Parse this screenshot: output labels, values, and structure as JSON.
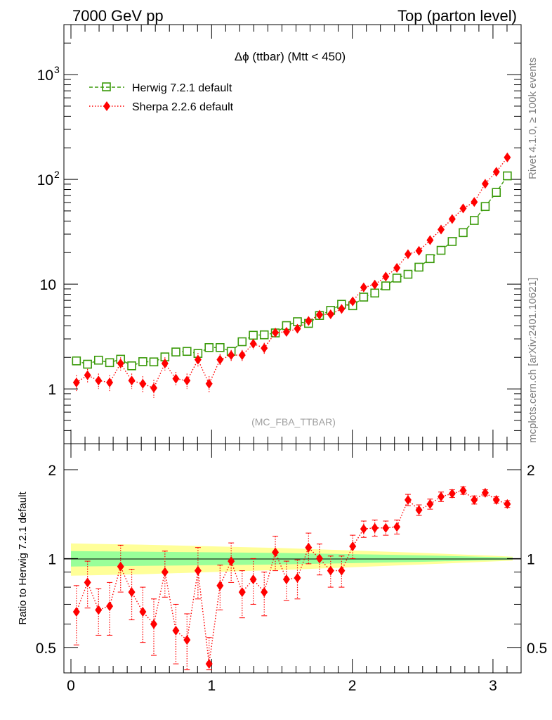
{
  "header": {
    "left": "7000 GeV pp",
    "right": "Top (parton level)"
  },
  "side_labels": {
    "rivet": "Rivet 4.1.0, ≥ 100k events",
    "mcplots": "mcplots.cern.ch [arXiv:2401.10621]"
  },
  "colors": {
    "herwig": "#3a9a0a",
    "sherpa": "#ff0000",
    "band_inner": "#99ff99",
    "band_outer": "#ffff99"
  },
  "chart_data": [
    {
      "type": "line",
      "title": "Δϕ (ttbar) (Mtt < 450)",
      "watermark": "(MC_FBA_TTBAR)",
      "yscale": "log",
      "xlim": [
        -0.05,
        3.2
      ],
      "ylim": [
        0.3,
        3000
      ],
      "yticks": [
        {
          "value": 1,
          "label": "1",
          "exp": ""
        },
        {
          "value": 10,
          "label": "10",
          "exp": ""
        },
        {
          "value": 100,
          "label": "10",
          "exp": "2"
        },
        {
          "value": 1000,
          "label": "10",
          "exp": "3"
        }
      ],
      "legend": [
        "Herwig 7.2.1 default",
        "Sherpa 2.2.6 default"
      ],
      "legend_position": "top-left",
      "x": [
        0.039,
        0.118,
        0.196,
        0.275,
        0.353,
        0.432,
        0.511,
        0.589,
        0.668,
        0.746,
        0.825,
        0.903,
        0.982,
        1.06,
        1.139,
        1.217,
        1.296,
        1.374,
        1.453,
        1.532,
        1.61,
        1.689,
        1.767,
        1.846,
        1.924,
        2.003,
        2.081,
        2.16,
        2.238,
        2.317,
        2.396,
        2.474,
        2.553,
        2.631,
        2.71,
        2.788,
        2.867,
        2.945,
        3.024,
        3.102
      ],
      "series": [
        {
          "name": "Herwig 7.2.1 default",
          "values": [
            1.85,
            1.72,
            1.88,
            1.78,
            1.92,
            1.66,
            1.82,
            1.81,
            2.02,
            2.25,
            2.28,
            2.18,
            2.48,
            2.48,
            2.28,
            2.82,
            3.25,
            3.28,
            3.42,
            4.02,
            4.38,
            4.22,
            5.02,
            5.62,
            6.42,
            6.22,
            7.52,
            8.22,
            9.62,
            11.42,
            12.42,
            14.52,
            17.52,
            21.02,
            25.52,
            31.02,
            40.52,
            55.02,
            75.02,
            108.0
          ]
        },
        {
          "name": "Sherpa 2.2.6 default",
          "values": [
            1.15,
            1.35,
            1.2,
            1.15,
            1.75,
            1.2,
            1.12,
            1.02,
            1.75,
            1.25,
            1.2,
            1.9,
            1.12,
            1.9,
            2.1,
            2.1,
            2.7,
            2.45,
            3.45,
            3.5,
            3.75,
            4.45,
            5.1,
            5.15,
            5.8,
            6.85,
            9.3,
            9.9,
            11.8,
            14.3,
            19.3,
            20.8,
            26.3,
            33.2,
            41.8,
            52.8,
            60.8,
            90.8,
            118.0,
            162.0
          ],
          "errors": [
            0.2,
            0.2,
            0.2,
            0.2,
            0.25,
            0.2,
            0.2,
            0.2,
            0.25,
            0.2,
            0.2,
            0.3,
            0.2,
            0.25,
            0.25,
            0.25,
            0.3,
            0.3,
            0.3,
            0.3,
            0.3,
            0.3,
            0.3,
            0.3,
            0.4,
            0.4,
            0.5,
            0.6,
            0.6,
            0.8,
            1.0,
            1.0,
            1.2,
            1.4,
            1.6,
            2.0,
            2.5,
            3.0,
            3.5,
            4.5
          ]
        }
      ]
    },
    {
      "type": "line",
      "ylabel": "Ratio to Herwig 7.2.1 default",
      "yscale": "log",
      "xlim": [
        -0.05,
        3.2
      ],
      "ylim": [
        0.41,
        2.45
      ],
      "xticks": [
        "0",
        "1",
        "2",
        "3"
      ],
      "yticks": [
        {
          "value": 0.5,
          "label": "0.5"
        },
        {
          "value": 1,
          "label": "1"
        },
        {
          "value": 2,
          "label": "2"
        }
      ],
      "reference_line": 1,
      "band_inner": {
        "x": [
          0,
          0.5,
          1.0,
          1.5,
          2.0,
          2.5,
          3.0,
          3.14
        ],
        "half_width": [
          0.06,
          0.055,
          0.05,
          0.045,
          0.035,
          0.025,
          0.012,
          0.008
        ]
      },
      "band_outer": {
        "x": [
          0,
          0.5,
          1.0,
          1.5,
          2.0,
          2.5,
          3.0,
          3.14
        ],
        "half_width": [
          0.125,
          0.115,
          0.1,
          0.085,
          0.065,
          0.045,
          0.022,
          0.015
        ]
      },
      "series": [
        {
          "name": "Sherpa 2.2.6 default / Herwig",
          "values": [
            0.66,
            0.83,
            0.67,
            0.69,
            0.94,
            0.77,
            0.66,
            0.6,
            0.9,
            0.57,
            0.53,
            0.91,
            0.44,
            0.81,
            0.98,
            0.77,
            0.85,
            0.77,
            1.05,
            0.85,
            0.86,
            1.09,
            1.0,
            0.91,
            0.91,
            1.1,
            1.26,
            1.27,
            1.27,
            1.28,
            1.58,
            1.46,
            1.53,
            1.62,
            1.66,
            1.7,
            1.58,
            1.67,
            1.58,
            1.53
          ],
          "errors": [
            0.15,
            0.15,
            0.12,
            0.14,
            0.17,
            0.15,
            0.14,
            0.13,
            0.16,
            0.13,
            0.12,
            0.18,
            0.1,
            0.14,
            0.15,
            0.14,
            0.15,
            0.13,
            0.14,
            0.13,
            0.13,
            0.13,
            0.12,
            0.11,
            0.11,
            0.1,
            0.08,
            0.08,
            0.07,
            0.07,
            0.07,
            0.06,
            0.06,
            0.06,
            0.05,
            0.05,
            0.05,
            0.04,
            0.04,
            0.04
          ]
        }
      ]
    }
  ]
}
